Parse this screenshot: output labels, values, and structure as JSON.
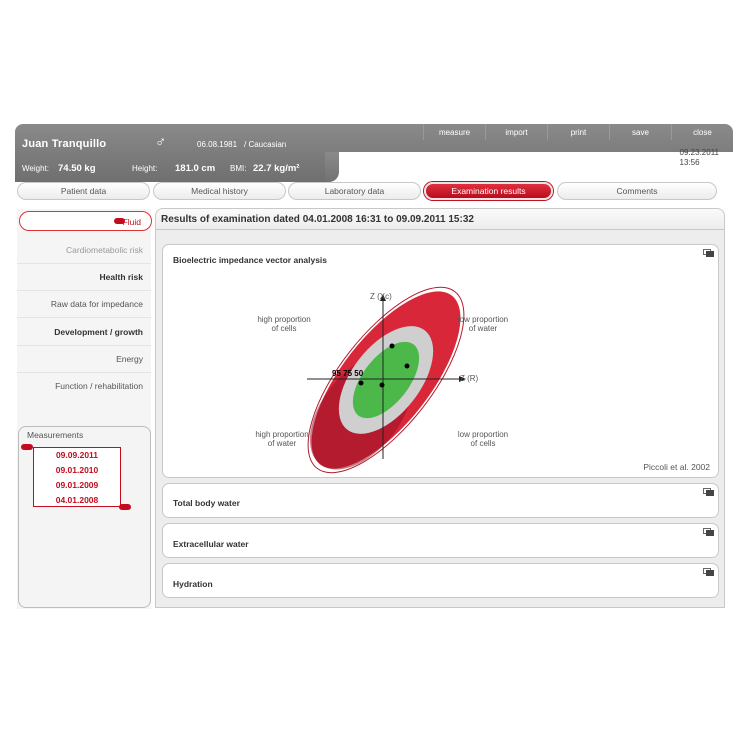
{
  "patient": {
    "name": "Juan Tranquillo",
    "gender_icon": "♂",
    "dob": "06.08.1981",
    "ethnicity": "/  Caucasian",
    "weight_label": "Weight:",
    "weight_value": "74.50 kg",
    "height_label": "Height:",
    "height_value": "181.0 cm",
    "bmi_label": "BMI:",
    "bmi_value": "22.7 kg/m²"
  },
  "toolbar": {
    "measure": "measure",
    "import": "import",
    "print": "print",
    "save": "save",
    "close": "close"
  },
  "current_date": "09.23.2011",
  "current_time": "13:56",
  "tabs": [
    "Patient data",
    "Medical history",
    "Laboratory data",
    "Examination results",
    "Comments"
  ],
  "sidebar": {
    "fluid": "Fluid",
    "items": [
      "Cardiometabolic risk",
      "Health risk",
      "Raw data for impedance",
      "Development / growth",
      "Energy",
      "Function / rehabilitation"
    ]
  },
  "measurements": {
    "title": "Measurements",
    "dates": [
      "09.09.2011",
      "09.01.2010",
      "09.01.2009",
      "04.01.2008"
    ]
  },
  "results": {
    "title": "Results of examination dated  04.01.2008 16:31 to 09.09.2011 15:32"
  },
  "bivia": {
    "title": "Bioelectric impedance vector analysis",
    "axis_y": "Z (Xc)",
    "axis_x": "Z (R)",
    "percentiles": "95  75 50",
    "q_top_left": "high proportion of cells",
    "q_top_right": "low proportion of water",
    "q_bottom_left": "high proportion of water",
    "q_bottom_right": "low proportion of cells",
    "citation": "Piccoli et al. 2002"
  },
  "panels": {
    "total_body_water": "Total body water",
    "extracellular_water": "Extracellular water",
    "hydration": "Hydration"
  },
  "colors": {
    "accent": "#c10d1d",
    "ellipse_95": "#d9273a",
    "ellipse_75": "#c9c9c9",
    "ellipse_50": "#4cb84a"
  }
}
